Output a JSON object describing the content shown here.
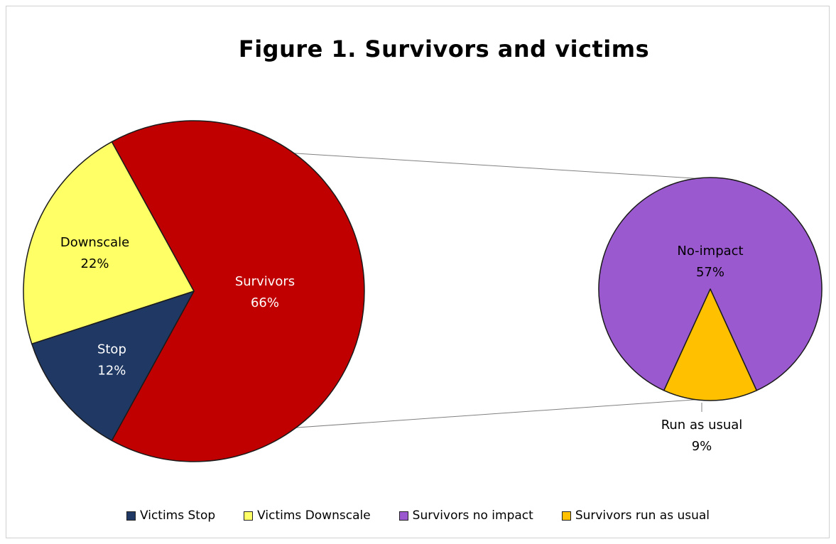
{
  "chart_data": {
    "type": "pie",
    "subtype": "pie-of-pie",
    "title": "Figure 1. Survivors and victims",
    "primary_pie": {
      "slices": [
        {
          "key": "survivors",
          "label": "Survivors",
          "value": 66,
          "value_label": "66%",
          "color": "#C00000",
          "text_color": "#ffffff"
        },
        {
          "key": "stop",
          "label": "Stop",
          "value": 12,
          "value_label": "12%",
          "color": "#1F3864",
          "text_color": "#ffffff"
        },
        {
          "key": "downscale",
          "label": "Downscale",
          "value": 22,
          "value_label": "22%",
          "color": "#FFFF66",
          "text_color": "#000000"
        }
      ]
    },
    "secondary_pie": {
      "slices": [
        {
          "key": "no_impact",
          "label": "No-impact",
          "value": 57,
          "value_label": "57%",
          "color": "#9B59D0",
          "text_color": "#000000"
        },
        {
          "key": "run_as_usual",
          "label": "Run as usual",
          "value": 9,
          "value_label": "9%",
          "color": "#FFC000",
          "text_color": "#000000"
        }
      ]
    },
    "legend": [
      {
        "label": "Victims Stop",
        "color": "#1F3864"
      },
      {
        "label": "Victims Downscale",
        "color": "#FFFF66"
      },
      {
        "label": "Survivors no impact",
        "color": "#9B59D0"
      },
      {
        "label": "Survivors run as usual",
        "color": "#FFC000"
      }
    ],
    "legend_position": "bottom"
  }
}
